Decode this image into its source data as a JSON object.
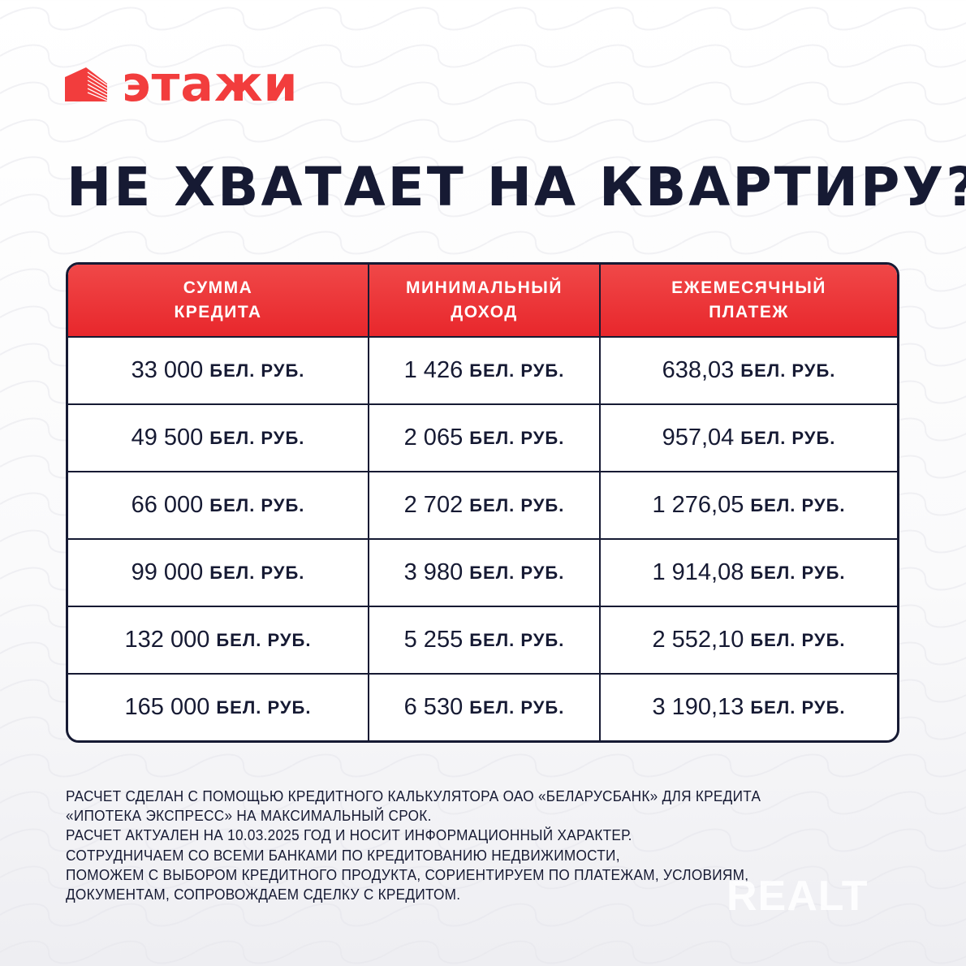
{
  "brand": {
    "name": "этажи",
    "color": "#f23d3d"
  },
  "title": "НЕ ХВАТАЕТ НА КВАРТИРУ?",
  "table": {
    "headers": [
      [
        "СУММА",
        "КРЕДИТА"
      ],
      [
        "МИНИМАЛЬНЫЙ",
        "ДОХОД"
      ],
      [
        "ЕЖЕМЕСЯЧНЫЙ",
        "ПЛАТЕЖ"
      ]
    ],
    "unit": "БЕЛ. РУБ.",
    "rows": [
      [
        "33 000",
        "1 426",
        "638,03"
      ],
      [
        "49 500",
        "2 065",
        "957,04"
      ],
      [
        "66 000",
        "2 702",
        "1 276,05"
      ],
      [
        "99 000",
        "3 980",
        "1 914,08"
      ],
      [
        "132 000",
        "5 255",
        "2 552,10"
      ],
      [
        "165 000",
        "6 530",
        "3 190,13"
      ]
    ]
  },
  "notes": [
    "РАСЧЕТ СДЕЛАН С ПОМОЩЬЮ КРЕДИТНОГО КАЛЬКУЛЯТОРА ОАО «БЕЛАРУСБАНК» ДЛЯ КРЕДИТА",
    "«ИПОТЕКА ЭКСПРЕСС» НА МАКСИМАЛЬНЫЙ СРОК.",
    "РАСЧЕТ АКТУАЛЕН НА 10.03.2025 ГОД И НОСИТ ИНФОРМАЦИОННЫЙ ХАРАКТЕР.",
    "СОТРУДНИЧАЕМ СО ВСЕМИ БАНКАМИ ПО КРЕДИТОВАНИЮ НЕДВИЖИМОСТИ,",
    "ПОМОЖЕМ С ВЫБОРОМ КРЕДИТНОГО ПРОДУКТА, СОРИЕНТИРУЕМ ПО ПЛАТЕЖАМ, УСЛОВИЯМ,",
    "ДОКУМЕНТАМ, СОПРОВОЖДАЕМ СДЕЛКУ С КРЕДИТОМ."
  ],
  "watermark": "REALT"
}
